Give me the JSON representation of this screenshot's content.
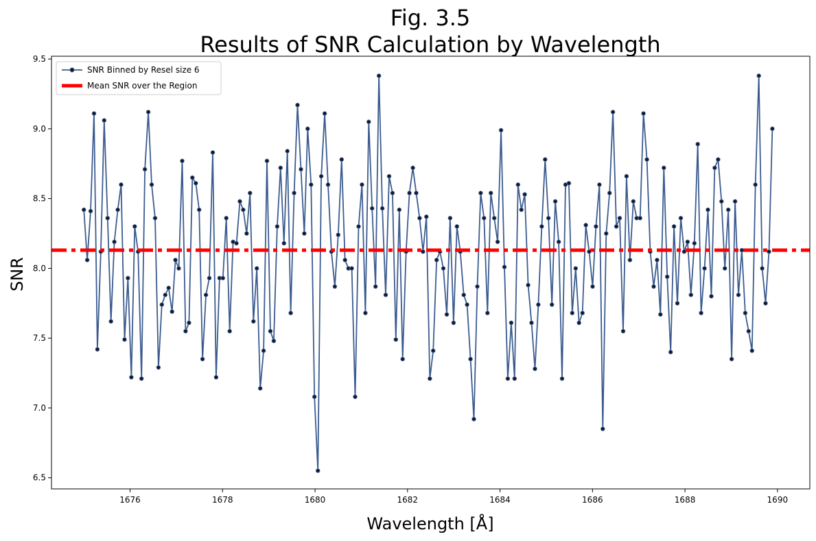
{
  "chart_data": {
    "type": "line",
    "title_line1": "Fig. 3.5",
    "title_line2": "Results of SNR Calculation by Wavelength",
    "xlabel": "Wavelength [Å]",
    "ylabel": "SNR",
    "xlim": [
      1674.3,
      1690.7
    ],
    "ylim": [
      6.42,
      9.52
    ],
    "xticks": [
      1676,
      1678,
      1680,
      1682,
      1684,
      1686,
      1688,
      1690
    ],
    "yticks": [
      6.5,
      7.0,
      7.5,
      8.0,
      8.5,
      9.0,
      9.5
    ],
    "xtick_labels": [
      "1676",
      "1678",
      "1680",
      "1682",
      "1684",
      "1686",
      "1688",
      "1690"
    ],
    "ytick_labels": [
      "6.5",
      "7.0",
      "7.5",
      "8.0",
      "8.5",
      "9.0",
      "9.5"
    ],
    "legend_position": "top-left",
    "series": [
      {
        "name": "SNR Binned by Resel size 6",
        "color": "#3b5b8f",
        "marker_color": "#0d1b33",
        "x_start": 1675.0,
        "x_step": 0.07335,
        "y": [
          8.42,
          8.06,
          8.41,
          9.11,
          7.42,
          8.12,
          9.06,
          8.36,
          7.62,
          8.19,
          8.42,
          8.6,
          7.49,
          7.93,
          7.22,
          8.3,
          8.12,
          7.21,
          8.71,
          9.12,
          8.6,
          8.36,
          7.29,
          7.74,
          7.81,
          7.86,
          7.69,
          8.06,
          8.0,
          8.77,
          7.55,
          7.61,
          8.65,
          8.61,
          8.42,
          7.35,
          7.81,
          7.93,
          8.83,
          7.22,
          7.93,
          7.93,
          8.36,
          7.55,
          8.19,
          8.18,
          8.48,
          8.42,
          8.25,
          8.54,
          7.62,
          8.0,
          7.14,
          7.41,
          8.77,
          7.55,
          7.48,
          8.3,
          8.72,
          8.18,
          8.84,
          7.68,
          8.54,
          9.17,
          8.71,
          8.25,
          9.0,
          8.6,
          7.08,
          6.55,
          8.66,
          9.11,
          8.6,
          8.12,
          7.87,
          8.24,
          8.78,
          8.06,
          8.0,
          8.0,
          7.08,
          8.3,
          8.6,
          7.68,
          9.05,
          8.43,
          7.87,
          9.38,
          8.43,
          7.81,
          8.66,
          8.54,
          7.49,
          8.42,
          7.35,
          8.12,
          8.54,
          8.72,
          8.54,
          8.36,
          8.12,
          8.37,
          7.21,
          7.41,
          8.06,
          8.12,
          8.0,
          7.67,
          8.36,
          7.61,
          8.3,
          8.12,
          7.81,
          7.74,
          7.35,
          6.92,
          7.87,
          8.54,
          8.36,
          7.68,
          8.54,
          8.36,
          8.19,
          8.99,
          8.01,
          7.21,
          7.61,
          7.21,
          8.6,
          8.42,
          8.53,
          7.88,
          7.61,
          7.28,
          7.74,
          8.3,
          8.78,
          8.36,
          7.74,
          8.48,
          8.19,
          7.21,
          8.6,
          8.61,
          7.68,
          8.0,
          7.61,
          7.68,
          8.31,
          8.12,
          7.87,
          8.3,
          8.6,
          6.85,
          8.25,
          8.54,
          9.12,
          8.3,
          8.36,
          7.55,
          8.66,
          8.06,
          8.48,
          8.36,
          8.36,
          9.11,
          8.78,
          8.12,
          7.87,
          8.06,
          7.67,
          8.72,
          7.94,
          7.4,
          8.3,
          7.75,
          8.36,
          8.12,
          8.19,
          7.81,
          8.18,
          8.89,
          7.68,
          8.0,
          8.42,
          7.8,
          8.72,
          8.78,
          8.48,
          8.0,
          8.42,
          7.35,
          8.48,
          7.81,
          8.13,
          7.68,
          7.55,
          7.41,
          8.6,
          9.38,
          8.0,
          7.75,
          8.12,
          9.0
        ]
      },
      {
        "name": "Mean SNR over the Region",
        "color": "#ff0000",
        "y_constant": 8.13
      }
    ]
  }
}
